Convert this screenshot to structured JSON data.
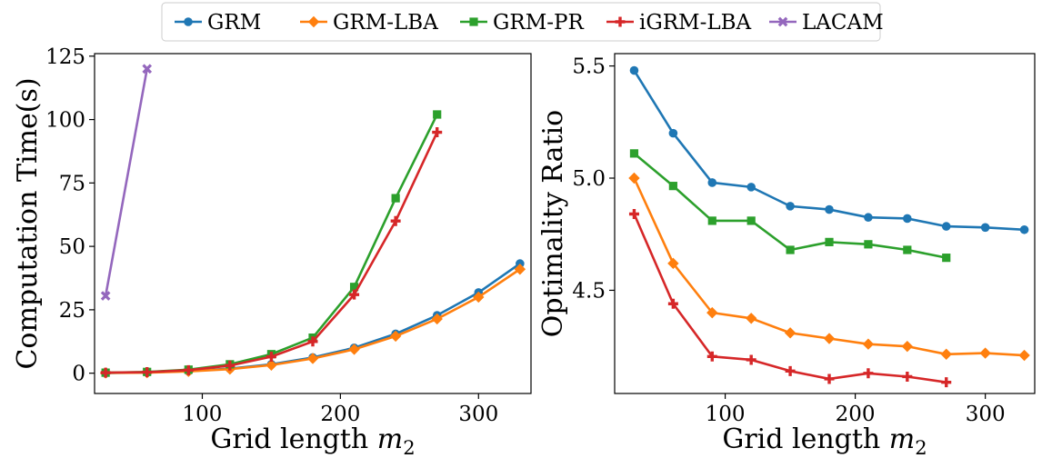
{
  "legend": {
    "placement": "top-center",
    "entries": [
      "GRM",
      "GRM-LBA",
      "GRM-PR",
      "iGRM-LBA",
      "LACAM"
    ]
  },
  "colors": {
    "GRM": "#1f77b4",
    "GRM-LBA": "#ff7f0e",
    "GRM-PR": "#2ca02c",
    "iGRM-LBA": "#d62728",
    "LACAM": "#9467bd"
  },
  "markers": {
    "GRM": "circle",
    "GRM-LBA": "diamond",
    "GRM-PR": "square",
    "iGRM-LBA": "plus",
    "LACAM": "x"
  },
  "chart_data": [
    {
      "type": "line",
      "xlabel": "Grid length",
      "xlabel_var": "m",
      "xlabel_sub": "2",
      "ylabel": "Computation Time(s)",
      "xlim": [
        22,
        338
      ],
      "ylim": [
        -8,
        126
      ],
      "xticks": [
        100,
        200,
        300
      ],
      "yticks": [
        0,
        25,
        50,
        75,
        100,
        125
      ],
      "grid": false,
      "series": [
        {
          "name": "GRM",
          "x": [
            30,
            60,
            90,
            120,
            150,
            180,
            210,
            240,
            270,
            300,
            330
          ],
          "y": [
            0.1,
            0.3,
            0.8,
            1.8,
            3.5,
            6.2,
            10.0,
            15.5,
            22.8,
            31.8,
            43.2
          ]
        },
        {
          "name": "GRM-LBA",
          "x": [
            30,
            60,
            90,
            120,
            150,
            180,
            210,
            240,
            270,
            300,
            330
          ],
          "y": [
            0.1,
            0.2,
            0.7,
            1.6,
            3.2,
            5.8,
            9.4,
            14.6,
            21.4,
            30.0,
            41.0
          ]
        },
        {
          "name": "GRM-PR",
          "x": [
            30,
            60,
            90,
            120,
            150,
            180,
            210,
            240,
            270
          ],
          "y": [
            0.2,
            0.5,
            1.4,
            3.5,
            7.5,
            14.0,
            34.0,
            69.0,
            102.0
          ]
        },
        {
          "name": "iGRM-LBA",
          "x": [
            30,
            60,
            90,
            120,
            150,
            180,
            210,
            240,
            270
          ],
          "y": [
            0.2,
            0.4,
            1.2,
            3.0,
            6.5,
            12.5,
            31.0,
            60.0,
            95.0
          ]
        },
        {
          "name": "LACAM",
          "x": [
            30,
            60
          ],
          "y": [
            30.5,
            120.0
          ]
        }
      ]
    },
    {
      "type": "line",
      "xlabel": "Grid length",
      "xlabel_var": "m",
      "xlabel_sub": "2",
      "ylabel": "Optimality Ratio",
      "xlim": [
        15,
        338
      ],
      "ylim": [
        4.04,
        5.555
      ],
      "xticks": [
        100,
        200,
        300
      ],
      "yticks": [
        4.5,
        5.0,
        5.5
      ],
      "ytick_labels": [
        "4.5",
        "5.0",
        "5.5"
      ],
      "grid": false,
      "series": [
        {
          "name": "GRM",
          "x": [
            30,
            60,
            90,
            120,
            150,
            180,
            210,
            240,
            270,
            300,
            330
          ],
          "y": [
            5.48,
            5.2,
            4.98,
            4.96,
            4.875,
            4.86,
            4.825,
            4.82,
            4.785,
            4.78,
            4.77
          ]
        },
        {
          "name": "GRM-LBA",
          "x": [
            30,
            60,
            90,
            120,
            150,
            180,
            210,
            240,
            270,
            300,
            330
          ],
          "y": [
            5.0,
            4.62,
            4.4,
            4.375,
            4.31,
            4.285,
            4.26,
            4.25,
            4.215,
            4.22,
            4.21
          ]
        },
        {
          "name": "GRM-PR",
          "x": [
            30,
            60,
            90,
            120,
            150,
            180,
            210,
            240,
            270
          ],
          "y": [
            5.11,
            4.965,
            4.81,
            4.81,
            4.68,
            4.715,
            4.705,
            4.68,
            4.645
          ]
        },
        {
          "name": "iGRM-LBA",
          "x": [
            30,
            60,
            90,
            120,
            150,
            180,
            210,
            240,
            270
          ],
          "y": [
            4.84,
            4.44,
            4.205,
            4.19,
            4.14,
            4.105,
            4.13,
            4.115,
            4.09
          ]
        }
      ]
    }
  ]
}
